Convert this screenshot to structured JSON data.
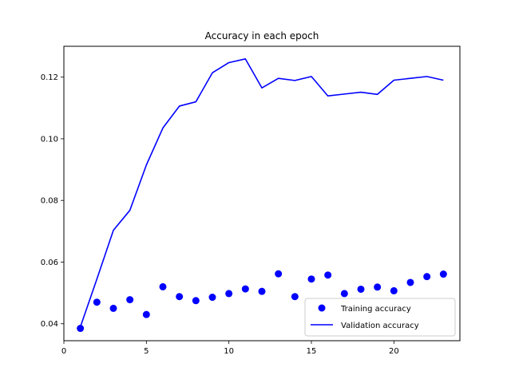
{
  "chart_data": {
    "type": "line",
    "title": "Accuracy in each epoch",
    "xlabel": "",
    "ylabel": "",
    "xlim": [
      0,
      24
    ],
    "ylim": [
      0.0345,
      0.13
    ],
    "xticks": [
      0,
      5,
      10,
      15,
      20
    ],
    "xtick_labels": [
      "0",
      "5",
      "10",
      "15",
      "20"
    ],
    "yticks": [
      0.04,
      0.06,
      0.08,
      0.1,
      0.12
    ],
    "ytick_labels": [
      "0.04",
      "0.06",
      "0.08",
      "0.10",
      "0.12"
    ],
    "grid": false,
    "legend_position": "lower-right",
    "x": [
      1,
      2,
      3,
      4,
      5,
      6,
      7,
      8,
      9,
      10,
      11,
      12,
      13,
      14,
      15,
      16,
      17,
      18,
      19,
      20,
      21,
      22,
      23
    ],
    "series": [
      {
        "name": "Training accuracy",
        "style": "points",
        "color": "#0000ff",
        "values": [
          0.0385,
          0.047,
          0.045,
          0.0478,
          0.043,
          0.052,
          0.0488,
          0.0475,
          0.0486,
          0.0498,
          0.0513,
          0.0505,
          0.0562,
          0.0488,
          0.0545,
          0.0558,
          0.0498,
          0.0512,
          0.0519,
          0.0507,
          0.0534,
          0.0553,
          0.0561
        ]
      },
      {
        "name": "Validation accuracy",
        "style": "line",
        "color": "#0000ff",
        "values": [
          0.039,
          0.0545,
          0.0703,
          0.0768,
          0.0915,
          0.1035,
          0.1106,
          0.112,
          0.1214,
          0.1247,
          0.1259,
          0.1165,
          0.1196,
          0.1189,
          0.1202,
          0.1139,
          0.1145,
          0.1151,
          0.1144,
          0.119,
          0.1196,
          0.1202,
          0.119
        ]
      }
    ]
  }
}
